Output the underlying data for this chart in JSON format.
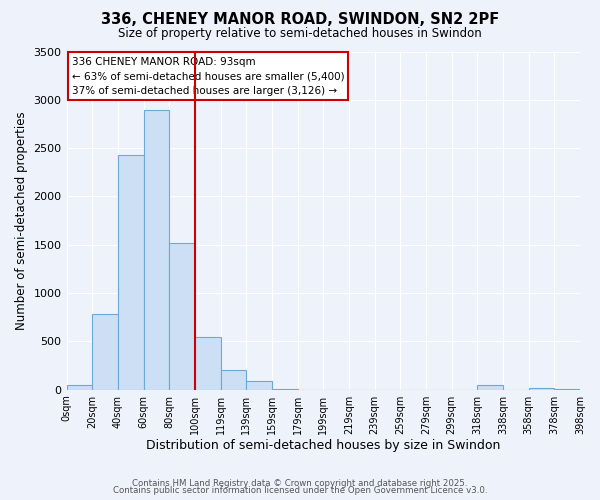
{
  "title": "336, CHENEY MANOR ROAD, SWINDON, SN2 2PF",
  "subtitle": "Size of property relative to semi-detached houses in Swindon",
  "xlabel": "Distribution of semi-detached houses by size in Swindon",
  "ylabel": "Number of semi-detached properties",
  "bar_color": "#ccdff5",
  "bar_edge_color": "#6aaad4",
  "background_color": "#eef2fb",
  "grid_color": "#ffffff",
  "vline_x_index": 5,
  "vline_color": "#cc0000",
  "annotation_line1": "336 CHENEY MANOR ROAD: 93sqm",
  "annotation_line2": "← 63% of semi-detached houses are smaller (5,400)",
  "annotation_line3": "37% of semi-detached houses are larger (3,126) →",
  "annotation_box_facecolor": "#ffffff",
  "annotation_box_edgecolor": "#cc0000",
  "bin_labels": [
    "0sqm",
    "20sqm",
    "40sqm",
    "60sqm",
    "80sqm",
    "100sqm",
    "119sqm",
    "139sqm",
    "159sqm",
    "179sqm",
    "199sqm",
    "219sqm",
    "239sqm",
    "259sqm",
    "279sqm",
    "299sqm",
    "318sqm",
    "338sqm",
    "358sqm",
    "378sqm",
    "398sqm"
  ],
  "counts": [
    50,
    780,
    2430,
    2890,
    1520,
    550,
    200,
    90,
    10,
    0,
    0,
    0,
    0,
    0,
    0,
    0,
    50,
    0,
    20,
    10
  ],
  "ylim": [
    0,
    3500
  ],
  "yticks": [
    0,
    500,
    1000,
    1500,
    2000,
    2500,
    3000,
    3500
  ],
  "footer_line1": "Contains HM Land Registry data © Crown copyright and database right 2025.",
  "footer_line2": "Contains public sector information licensed under the Open Government Licence v3.0."
}
